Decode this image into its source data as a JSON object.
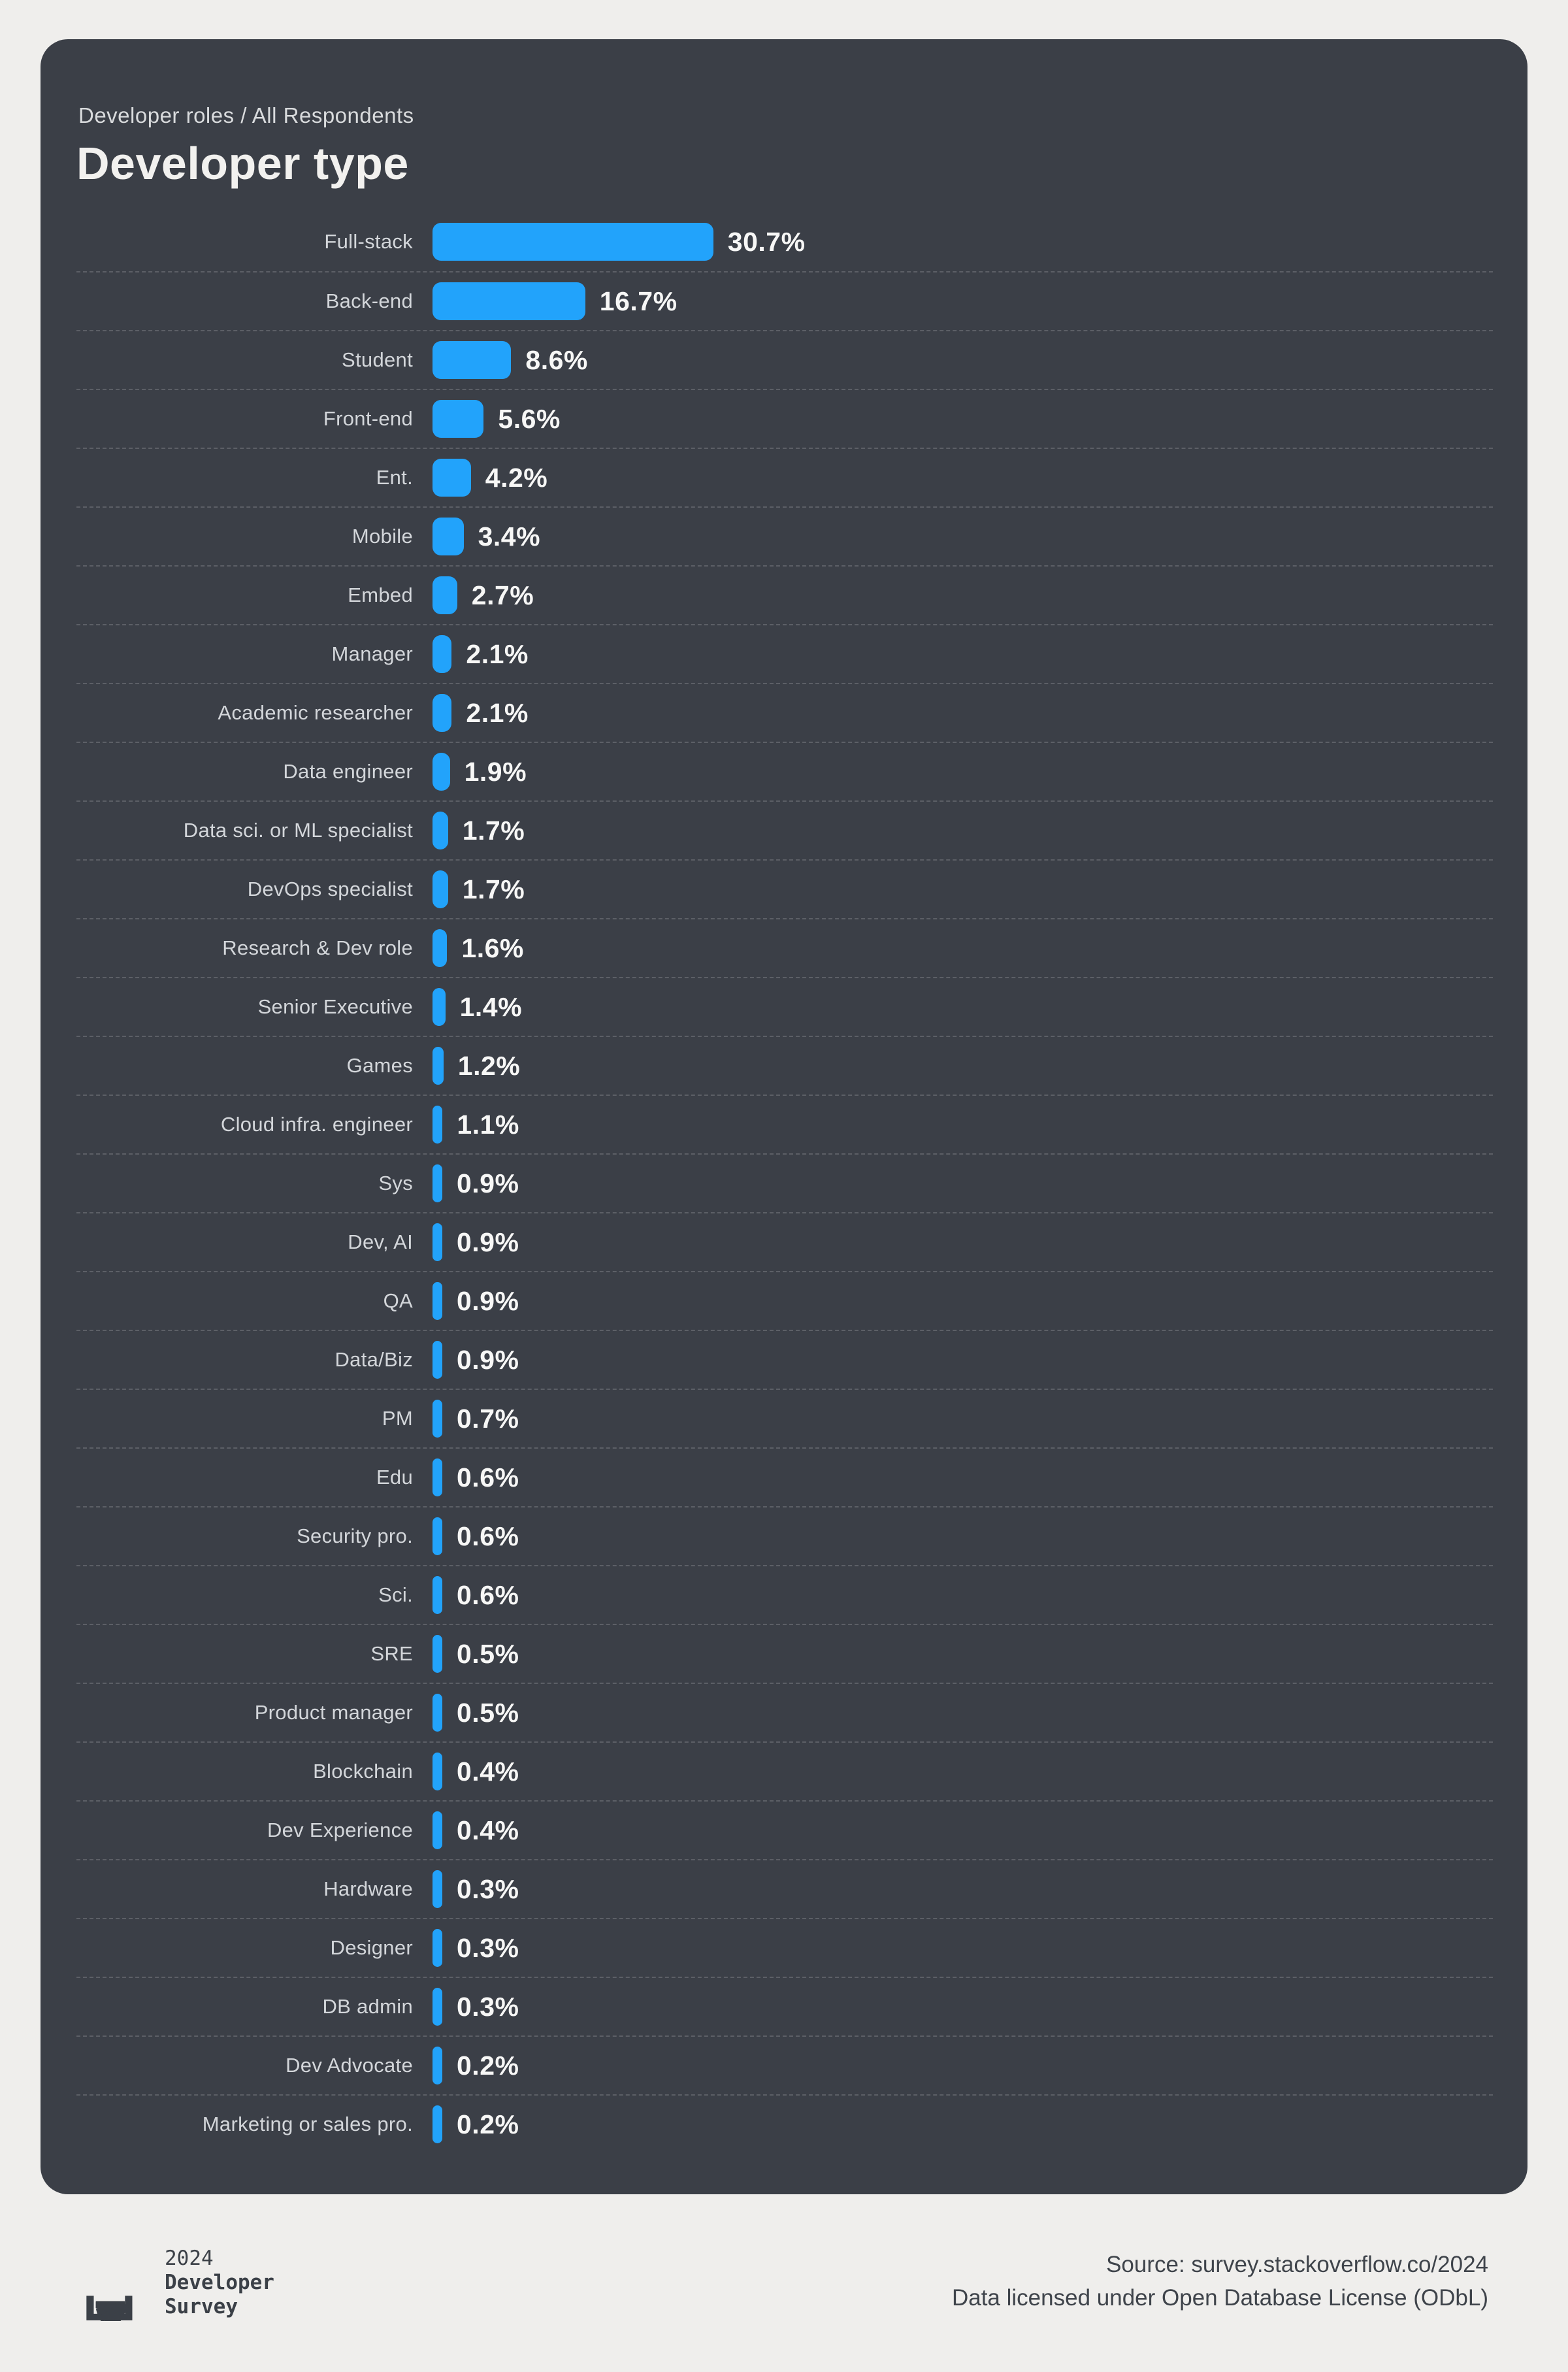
{
  "page": {
    "background": "#efeeec",
    "panel_background": "#3b3f47",
    "accent_blue": "#22a3fb"
  },
  "header": {
    "breadcrumb": "Developer roles / All Respondents",
    "title": "Developer type"
  },
  "chart_data": {
    "type": "bar",
    "orientation": "horizontal",
    "unit": "%",
    "title": "Developer type",
    "bar_color": "#22a3fb",
    "grid": "dashed row separators",
    "value_label_position": "right of bar",
    "xlim": [
      0,
      33
    ],
    "categories": [
      "Full-stack",
      "Back-end",
      "Student",
      "Front-end",
      "Ent.",
      "Mobile",
      "Embed",
      "Manager",
      "Academic researcher",
      "Data engineer",
      "Data sci. or ML specialist",
      "DevOps specialist",
      "Research & Dev role",
      "Senior Executive",
      "Games",
      "Cloud infra. engineer",
      "Sys",
      "Dev, AI",
      "QA",
      "Data/Biz",
      "PM",
      "Edu",
      "Security pro.",
      "Sci.",
      "SRE",
      "Product manager",
      "Blockchain",
      "Dev Experience",
      "Hardware",
      "Designer",
      "DB admin",
      "Dev Advocate",
      "Marketing or sales pro."
    ],
    "values": [
      30.7,
      16.7,
      8.6,
      5.6,
      4.2,
      3.4,
      2.7,
      2.1,
      2.1,
      1.9,
      1.7,
      1.7,
      1.6,
      1.4,
      1.2,
      1.1,
      0.9,
      0.9,
      0.9,
      0.9,
      0.7,
      0.6,
      0.6,
      0.6,
      0.5,
      0.5,
      0.4,
      0.4,
      0.3,
      0.3,
      0.3,
      0.2,
      0.2
    ]
  },
  "footer": {
    "logo": {
      "icon": "stackoverflow-stack-icon",
      "line1": "2024",
      "line2": "Developer",
      "line3": "Survey"
    },
    "source_line1": "Source: survey.stackoverflow.co/2024",
    "source_line2": "Data licensed under Open Database License (ODbL)"
  }
}
